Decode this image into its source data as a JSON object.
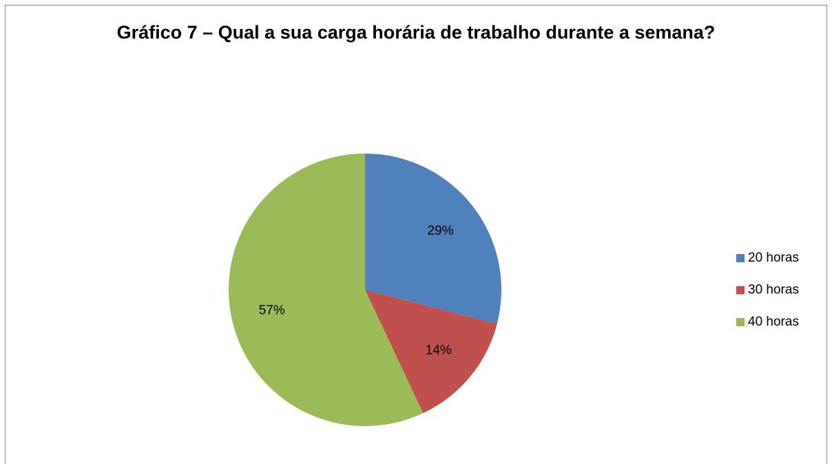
{
  "chart_data": {
    "type": "pie",
    "title": "Gráfico 7 – Qual a sua carga horária de trabalho durante a semana?",
    "categories": [
      "20 horas",
      "30 horas",
      "40 horas"
    ],
    "values": [
      29,
      14,
      57
    ],
    "value_labels": [
      "29%",
      "14%",
      "57%"
    ],
    "colors": [
      "#4f81bd",
      "#c0504d",
      "#9bbb59"
    ],
    "legend": "right"
  }
}
